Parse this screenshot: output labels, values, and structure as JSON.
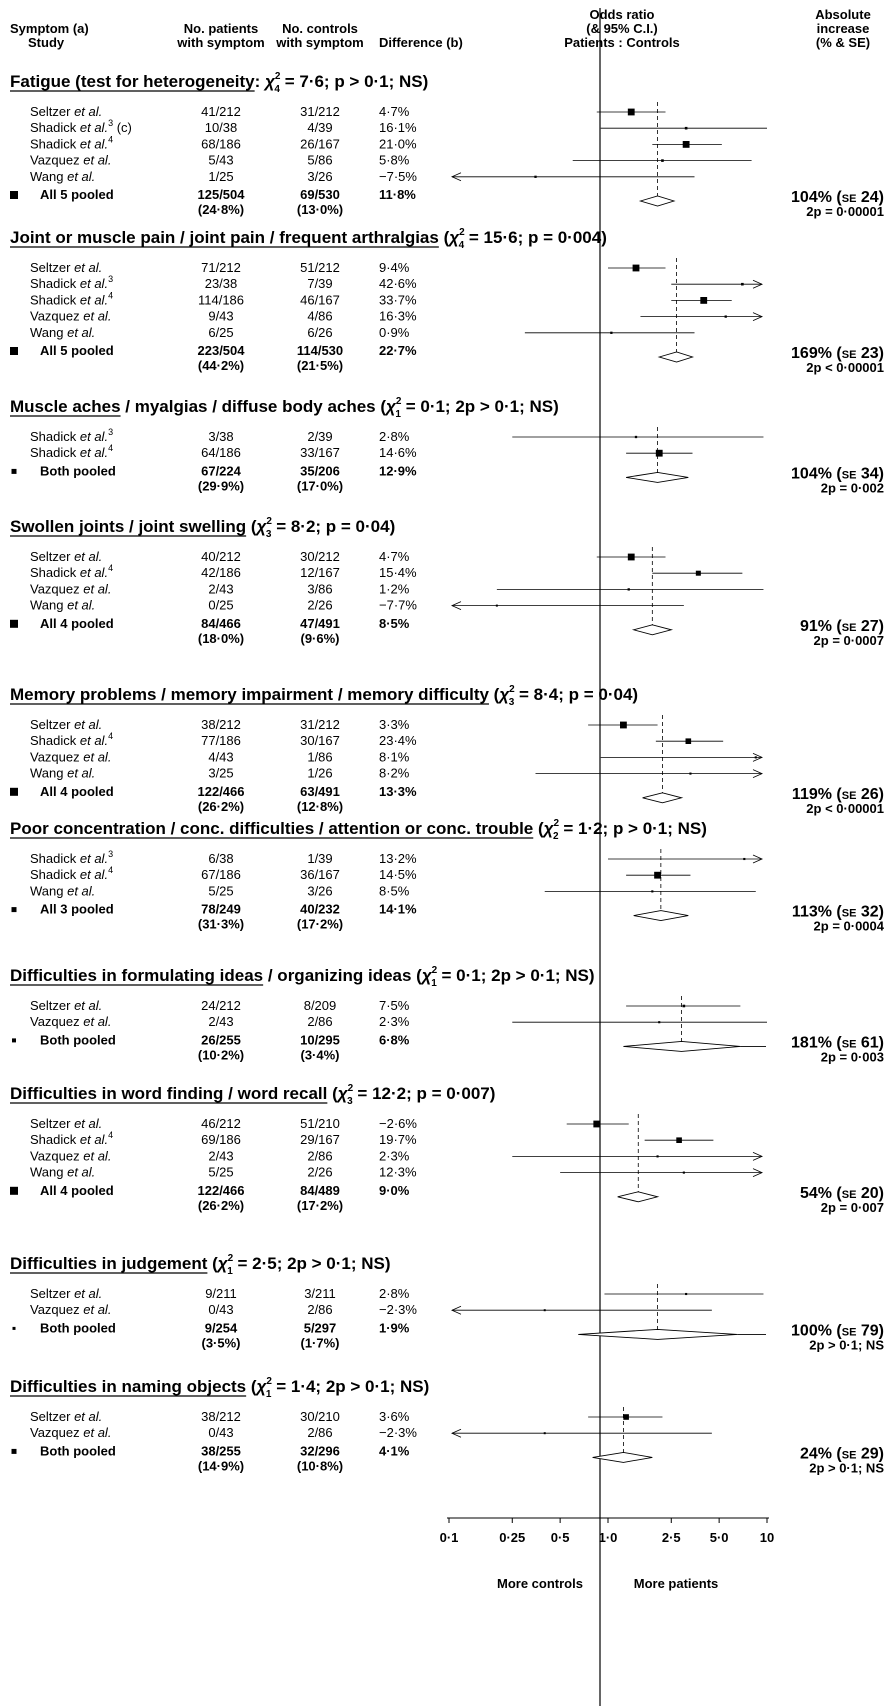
{
  "header": {
    "symptom": [
      "Symptom (a)",
      "Study"
    ],
    "patients": [
      "No. patients",
      "with symptom"
    ],
    "controls": [
      "No. controls",
      "with symptom"
    ],
    "difference": "Difference (b)",
    "odds": [
      "Odds ratio",
      "(& 95% C.I.)",
      "Patients : Controls"
    ],
    "absolute": [
      "Absolute",
      "increase",
      "(% & SE)"
    ]
  },
  "axis": {
    "ticks": [
      "0·1",
      "0·25",
      "0·5",
      "1·0",
      "2·5",
      "5·0",
      "10"
    ],
    "tick_values": [
      0.1,
      0.25,
      0.5,
      1.0,
      2.5,
      5.0,
      10
    ],
    "left_label": "More controls",
    "right_label": "More patients",
    "scale": "log"
  },
  "chart_data": {
    "type": "forest",
    "xscale": "log",
    "xlim": [
      0.1,
      10
    ],
    "reference_line": 1.0,
    "sections": [
      {
        "title_pre": "Fatigue (test for heterogeneity: ",
        "title_chi_sub": "4",
        "title_post": " = 7·6; p > 0·1; NS)",
        "underline_end": "heterogeneity",
        "studies": [
          {
            "name": "Seltzer",
            "ref": "",
            "note": "",
            "patients": "41/212",
            "controls": "31/212",
            "diff": "4·7%",
            "or": 1.4,
            "lo": 0.85,
            "hi": 2.3,
            "wt": 0.8
          },
          {
            "name": "Shadick",
            "ref": "3",
            "note": "(c)",
            "patients": "10/38",
            "controls": "4/39",
            "diff": "16·1%",
            "or": 3.1,
            "lo": 0.9,
            "hi": 10.5,
            "wt": 0.1
          },
          {
            "name": "Shadick",
            "ref": "4",
            "note": "",
            "patients": "68/186",
            "controls": "26/167",
            "diff": "21·0%",
            "or": 3.1,
            "lo": 1.9,
            "hi": 5.2,
            "wt": 0.8
          },
          {
            "name": "Vazquez",
            "ref": "",
            "note": "",
            "patients": "5/43",
            "controls": "5/86",
            "diff": "5·8%",
            "or": 2.2,
            "lo": 0.6,
            "hi": 8.0,
            "wt": 0.1
          },
          {
            "name": "Wang",
            "ref": "",
            "note": "",
            "patients": "1/25",
            "controls": "3/26",
            "diff": "−7·5%",
            "or": 0.35,
            "lo": 0.05,
            "hi": 3.5,
            "wt": 0.05,
            "arrow_left": true
          }
        ],
        "pooled": {
          "label": "All 5 pooled",
          "patients": "125/504",
          "controls": "69/530",
          "patients_pct": "(24·8%)",
          "controls_pct": "(13·0%)",
          "diff": "11·8%",
          "or": 2.05,
          "lo": 1.6,
          "hi": 2.6,
          "marker": "large"
        },
        "abs": "104%",
        "se": "24",
        "p": "2p = 0·00001"
      },
      {
        "title_pre": "Joint or muscle pain / joint pain / frequent arthralgias (",
        "title_chi_sub": "4",
        "title_post": " = 15·6; p = 0·004)",
        "underline_end": "arthralgias",
        "studies": [
          {
            "name": "Seltzer",
            "ref": "",
            "note": "",
            "patients": "71/212",
            "controls": "51/212",
            "diff": "9·4%",
            "or": 1.5,
            "lo": 1.0,
            "hi": 2.3,
            "wt": 0.8
          },
          {
            "name": "Shadick",
            "ref": "3",
            "note": "",
            "patients": "23/38",
            "controls": "7/39",
            "diff": "42·6%",
            "or": 7.0,
            "lo": 2.5,
            "hi": 20,
            "wt": 0.1,
            "arrow_right": true
          },
          {
            "name": "Shadick",
            "ref": "4",
            "note": "",
            "patients": "114/186",
            "controls": "46/167",
            "diff": "33·7%",
            "or": 4.0,
            "lo": 2.5,
            "hi": 6.0,
            "wt": 0.8
          },
          {
            "name": "Vazquez",
            "ref": "",
            "note": "",
            "patients": "9/43",
            "controls": "4/86",
            "diff": "16·3%",
            "or": 5.5,
            "lo": 1.6,
            "hi": 20,
            "wt": 0.05,
            "arrow_right": true
          },
          {
            "name": "Wang",
            "ref": "",
            "note": "",
            "patients": "6/25",
            "controls": "6/26",
            "diff": "0·9%",
            "or": 1.05,
            "lo": 0.3,
            "hi": 3.5,
            "wt": 0.05
          }
        ],
        "pooled": {
          "label": "All 5 pooled",
          "patients": "223/504",
          "controls": "114/530",
          "patients_pct": "(44·2%)",
          "controls_pct": "(21·5%)",
          "diff": "22·7%",
          "or": 2.7,
          "lo": 2.1,
          "hi": 3.4,
          "marker": "large"
        },
        "abs": "169%",
        "se": "23",
        "p": "2p < 0·00001"
      },
      {
        "title_pre": "Muscle aches / myalgias / diffuse body aches (",
        "title_chi_sub": "1",
        "title_post": " = 0·1; 2p > 0·1; NS)",
        "underline_end": "aches",
        "studies": [
          {
            "name": "Shadick",
            "ref": "3",
            "note": "",
            "patients": "3/38",
            "controls": "2/39",
            "diff": "2·8%",
            "or": 1.5,
            "lo": 0.25,
            "hi": 9.5,
            "wt": 0.05
          },
          {
            "name": "Shadick",
            "ref": "4",
            "note": "",
            "patients": "64/186",
            "controls": "33/167",
            "diff": "14·6%",
            "or": 2.1,
            "lo": 1.3,
            "hi": 3.4,
            "wt": 0.8
          }
        ],
        "pooled": {
          "label": "Both pooled",
          "patients": "67/224",
          "controls": "35/206",
          "patients_pct": "(29·9%)",
          "controls_pct": "(17·0%)",
          "diff": "12·9%",
          "or": 2.05,
          "lo": 1.3,
          "hi": 3.2,
          "marker": "small"
        },
        "abs": "104%",
        "se": "34",
        "p": "2p = 0·002"
      },
      {
        "title_pre": "Swollen joints / joint swelling (",
        "title_chi_sub": "3",
        "title_post": " = 8·2; p = 0·04)",
        "underline_end": "swelling",
        "studies": [
          {
            "name": "Seltzer",
            "ref": "",
            "note": "",
            "patients": "40/212",
            "controls": "30/212",
            "diff": "4·7%",
            "or": 1.4,
            "lo": 0.85,
            "hi": 2.3,
            "wt": 0.8
          },
          {
            "name": "Shadick",
            "ref": "4",
            "note": "",
            "patients": "42/186",
            "controls": "12/167",
            "diff": "15·4%",
            "or": 3.7,
            "lo": 1.9,
            "hi": 7.0,
            "wt": 0.5
          },
          {
            "name": "Vazquez",
            "ref": "",
            "note": "",
            "patients": "2/43",
            "controls": "3/86",
            "diff": "1·2%",
            "or": 1.35,
            "lo": 0.2,
            "hi": 9.5,
            "wt": 0.05
          },
          {
            "name": "Wang",
            "ref": "",
            "note": "",
            "patients": "0/25",
            "controls": "2/26",
            "diff": "−7·7%",
            "or": 0.2,
            "lo": 0.05,
            "hi": 3.0,
            "wt": 0.0,
            "arrow_left": true
          }
        ],
        "pooled": {
          "label": "All 4 pooled",
          "patients": "84/466",
          "controls": "47/491",
          "patients_pct": "(18·0%)",
          "controls_pct": "(9·6%)",
          "diff": "8·5%",
          "or": 1.9,
          "lo": 1.45,
          "hi": 2.5,
          "marker": "large"
        },
        "abs": "91%",
        "se": "27",
        "p": "2p = 0·0007"
      },
      {
        "title_pre": "Memory problems / memory impairment / memory difficulty (",
        "title_chi_sub": "3",
        "title_post": " = 8·4; p = 0·04)",
        "underline_end": "difficulty",
        "studies": [
          {
            "name": "Seltzer",
            "ref": "",
            "note": "",
            "patients": "38/212",
            "controls": "31/212",
            "diff": "3·3%",
            "or": 1.25,
            "lo": 0.75,
            "hi": 2.05,
            "wt": 0.8
          },
          {
            "name": "Shadick",
            "ref": "4",
            "note": "",
            "patients": "77/186",
            "controls": "30/167",
            "diff": "23·4%",
            "or": 3.2,
            "lo": 2.0,
            "hi": 5.3,
            "wt": 0.6
          },
          {
            "name": "Vazquez",
            "ref": "",
            "note": "",
            "patients": "4/43",
            "controls": "1/86",
            "diff": "8·1%",
            "or": 8.5,
            "lo": 0.9,
            "hi": 20,
            "wt": 0.02,
            "arrow_right": true
          },
          {
            "name": "Wang",
            "ref": "",
            "note": "",
            "patients": "3/25",
            "controls": "1/26",
            "diff": "8·2%",
            "or": 3.3,
            "lo": 0.35,
            "hi": 20,
            "wt": 0.02,
            "arrow_right": true
          }
        ],
        "pooled": {
          "label": "All 4 pooled",
          "patients": "122/466",
          "controls": "63/491",
          "patients_pct": "(26·2%)",
          "controls_pct": "(12·8%)",
          "diff": "13·3%",
          "or": 2.2,
          "lo": 1.65,
          "hi": 2.9,
          "marker": "large"
        },
        "abs": "119%",
        "se": "26",
        "p": "2p < 0·00001"
      },
      {
        "title_pre": "Poor concentration / conc. difficulties / attention or conc. trouble (",
        "title_chi_sub": "2",
        "title_post": " = 1·2; p > 0·1; NS)",
        "underline_end": "trouble",
        "studies": [
          {
            "name": "Shadick",
            "ref": "3",
            "note": "",
            "patients": "6/38",
            "controls": "1/39",
            "diff": "13·2%",
            "or": 7.2,
            "lo": 1.0,
            "hi": 20,
            "wt": 0.02,
            "arrow_right": true
          },
          {
            "name": "Shadick",
            "ref": "4",
            "note": "",
            "patients": "67/186",
            "controls": "36/167",
            "diff": "14·5%",
            "or": 2.05,
            "lo": 1.3,
            "hi": 3.3,
            "wt": 0.8
          },
          {
            "name": "Wang",
            "ref": "",
            "note": "",
            "patients": "5/25",
            "controls": "3/26",
            "diff": "8·5%",
            "or": 1.9,
            "lo": 0.4,
            "hi": 8.5,
            "wt": 0.02
          }
        ],
        "pooled": {
          "label": "All 3 pooled",
          "patients": "78/249",
          "controls": "40/232",
          "patients_pct": "(31·3%)",
          "controls_pct": "(17·2%)",
          "diff": "14·1%",
          "or": 2.15,
          "lo": 1.45,
          "hi": 3.2,
          "marker": "small"
        },
        "abs": "113%",
        "se": "32",
        "p": "2p = 0·0004"
      },
      {
        "title_pre": "Difficulties in formulating ideas / organizing ideas (",
        "title_chi_sub": "1",
        "title_post": " = 0·1; 2p > 0·1; NS)",
        "underline_end": "ideas",
        "studies": [
          {
            "name": "Seltzer",
            "ref": "",
            "note": "",
            "patients": "24/212",
            "controls": "8/209",
            "diff": "7·5%",
            "or": 3.0,
            "lo": 1.3,
            "hi": 6.8,
            "wt": 0.1
          },
          {
            "name": "Vazquez",
            "ref": "",
            "note": "",
            "patients": "2/43",
            "controls": "2/86",
            "diff": "2·3%",
            "or": 2.1,
            "lo": 0.25,
            "hi": 10,
            "wt": 0.02
          }
        ],
        "pooled": {
          "label": "Both pooled",
          "patients": "26/255",
          "controls": "10/295",
          "patients_pct": "(10·2%)",
          "controls_pct": "(3·4%)",
          "diff": "6·8%",
          "or": 2.9,
          "lo": 1.25,
          "hi": 6.8,
          "marker": "tiny"
        },
        "abs": "181%",
        "se": "61",
        "p": "2p = 0·003",
        "abs_dash": true
      },
      {
        "title_pre": "Difficulties in word finding / word recall (",
        "title_chi_sub": "3",
        "title_post": " = 12·2; p = 0·007)",
        "underline_end": "recall",
        "studies": [
          {
            "name": "Seltzer",
            "ref": "",
            "note": "",
            "patients": "46/212",
            "controls": "51/210",
            "diff": "−2·6%",
            "or": 0.85,
            "lo": 0.55,
            "hi": 1.35,
            "wt": 0.8
          },
          {
            "name": "Shadick",
            "ref": "4",
            "note": "",
            "patients": "69/186",
            "controls": "29/167",
            "diff": "19·7%",
            "or": 2.8,
            "lo": 1.7,
            "hi": 4.6,
            "wt": 0.6
          },
          {
            "name": "Vazquez",
            "ref": "",
            "note": "",
            "patients": "2/43",
            "controls": "2/86",
            "diff": "2·3%",
            "or": 2.05,
            "lo": 0.25,
            "hi": 20,
            "wt": 0.02,
            "arrow_right": true
          },
          {
            "name": "Wang",
            "ref": "",
            "note": "",
            "patients": "5/25",
            "controls": "2/26",
            "diff": "12·3%",
            "or": 3.0,
            "lo": 0.5,
            "hi": 20,
            "wt": 0.02,
            "arrow_right": true
          }
        ],
        "pooled": {
          "label": "All 4 pooled",
          "patients": "122/466",
          "controls": "84/489",
          "patients_pct": "(26·2%)",
          "controls_pct": "(17·2%)",
          "diff": "9·0%",
          "or": 1.55,
          "lo": 1.15,
          "hi": 2.05,
          "marker": "large"
        },
        "abs": "54%",
        "se": "20",
        "p": "2p = 0·007"
      },
      {
        "title_pre": "Difficulties in judgement (",
        "title_chi_sub": "1",
        "title_post": " = 2·5; 2p > 0·1; NS)",
        "underline_end": "judgement",
        "studies": [
          {
            "name": "Seltzer",
            "ref": "",
            "note": "",
            "patients": "9/211",
            "controls": "3/211",
            "diff": "2·8%",
            "or": 3.1,
            "lo": 0.95,
            "hi": 9.5,
            "wt": 0.02
          },
          {
            "name": "Vazquez",
            "ref": "",
            "note": "",
            "patients": "0/43",
            "controls": "2/86",
            "diff": "−2·3%",
            "or": 0.4,
            "lo": 0.05,
            "hi": 4.5,
            "wt": 0.0,
            "arrow_left": true
          }
        ],
        "pooled": {
          "label": "Both pooled",
          "patients": "9/254",
          "controls": "5/297",
          "patients_pct": "(3·5%)",
          "controls_pct": "(1·7%)",
          "diff": "1·9%",
          "or": 2.05,
          "lo": 0.65,
          "hi": 6.5,
          "marker": "dot"
        },
        "abs": "100%",
        "se": "79",
        "p": "2p > 0·1; NS",
        "abs_dash": true
      },
      {
        "title_pre": "Difficulties in naming objects (",
        "title_chi_sub": "1",
        "title_post": " = 1·4; 2p > 0·1; NS)",
        "underline_end": "objects",
        "studies": [
          {
            "name": "Seltzer",
            "ref": "",
            "note": "",
            "patients": "38/212",
            "controls": "30/210",
            "diff": "3·6%",
            "or": 1.3,
            "lo": 0.75,
            "hi": 2.2,
            "wt": 0.6
          },
          {
            "name": "Vazquez",
            "ref": "",
            "note": "",
            "patients": "0/43",
            "controls": "2/86",
            "diff": "−2·3%",
            "or": 0.4,
            "lo": 0.05,
            "hi": 4.5,
            "wt": 0.0,
            "arrow_left": true
          }
        ],
        "pooled": {
          "label": "Both pooled",
          "patients": "38/255",
          "controls": "32/296",
          "patients_pct": "(14·9%)",
          "controls_pct": "(10·8%)",
          "diff": "4·1%",
          "or": 1.25,
          "lo": 0.8,
          "hi": 1.9,
          "marker": "small"
        },
        "abs": "24%",
        "se": "29",
        "p": "2p > 0·1; NS"
      }
    ]
  },
  "labels": {
    "etal": "et al.",
    "chi": "χ",
    "chi_sup": "2",
    "se": "SE"
  }
}
